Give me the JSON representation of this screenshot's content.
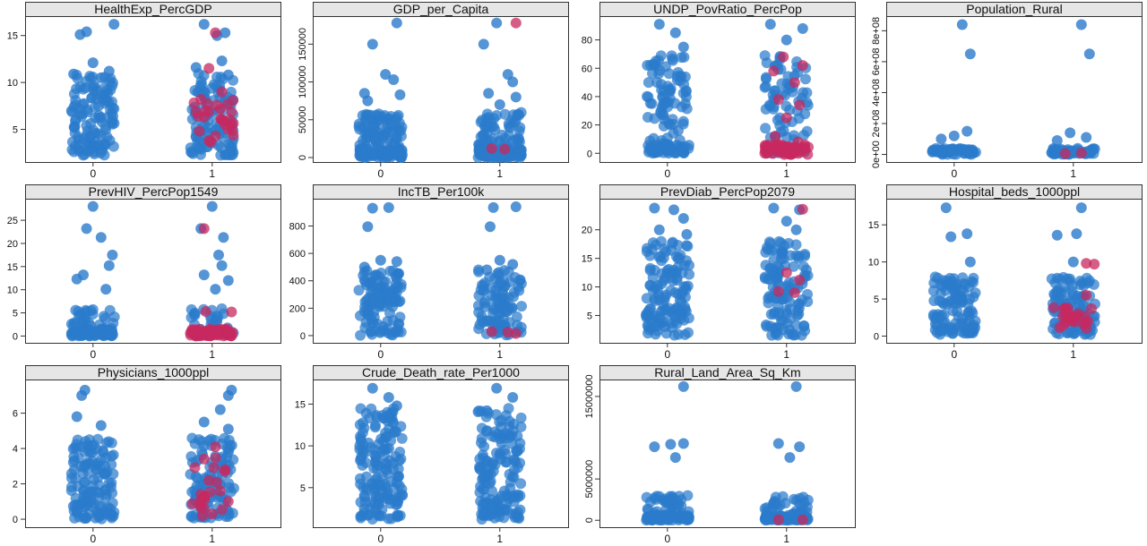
{
  "colors": {
    "blue": "#2b7bcc",
    "red": "#c7285f",
    "strip_bg": "#e6e6e6",
    "frame": "#333333"
  },
  "chart_data": [
    {
      "type": "scatter",
      "title": "HealthExp_PercGDP",
      "categories": [
        "0",
        "1"
      ],
      "ylim": [
        2,
        16.5
      ],
      "yticks": [
        {
          "v": 5,
          "t": "5"
        },
        {
          "v": 10,
          "t": "10"
        },
        {
          "v": 15,
          "t": "15"
        }
      ],
      "points": [
        [
          0.13,
          16.2
        ],
        [
          -0.08,
          15.1
        ],
        [
          -0.04,
          15.4
        ],
        [
          0.0,
          12.1
        ],
        [
          0.1,
          11.2
        ],
        [
          -0.12,
          10.9
        ],
        [
          0.05,
          10.5
        ],
        [
          0.95,
          16.2
        ],
        [
          1.08,
          15.3
        ],
        [
          1.03,
          15.0
        ],
        [
          1.06,
          12.3
        ],
        [
          0.9,
          11.6
        ],
        [
          1.1,
          10.8
        ]
      ],
      "red_points": [
        [
          1.02,
          15.3
        ],
        [
          0.98,
          11.5
        ],
        [
          1.06,
          9.0
        ],
        [
          0.93,
          8.2
        ],
        [
          1.05,
          7.2
        ],
        [
          0.95,
          6.3
        ],
        [
          1.08,
          5.5
        ],
        [
          0.92,
          4.8
        ],
        [
          1.02,
          4.3
        ],
        [
          0.98,
          3.8
        ],
        [
          1.1,
          5.0
        ],
        [
          0.9,
          6.9
        ]
      ],
      "bulk": [
        {
          "g": 0,
          "y0": 2.2,
          "y1": 11,
          "n": 120,
          "c": "blue"
        },
        {
          "g": 1,
          "y0": 2.2,
          "y1": 11,
          "n": 110,
          "c": "blue"
        },
        {
          "g": 1,
          "y0": 3.5,
          "y1": 9,
          "n": 18,
          "c": "red"
        }
      ]
    },
    {
      "type": "scatter",
      "title": "GDP_per_Capita",
      "categories": [
        "0",
        "1"
      ],
      "ylim": [
        0,
        180000
      ],
      "yticks": [
        {
          "v": 0,
          "t": "0"
        },
        {
          "v": 50000,
          "t": "50000"
        },
        {
          "v": 100000,
          "t": "100000"
        },
        {
          "v": 150000,
          "t": "150000"
        }
      ],
      "points": [
        [
          0.1,
          178000
        ],
        [
          -0.05,
          150000
        ],
        [
          0.03,
          110000
        ],
        [
          0.08,
          103000
        ],
        [
          -0.1,
          85000
        ],
        [
          0.12,
          83000
        ],
        [
          -0.08,
          75000
        ],
        [
          0.98,
          178000
        ],
        [
          0.9,
          150000
        ],
        [
          1.05,
          110000
        ],
        [
          1.08,
          100000
        ],
        [
          0.93,
          85000
        ],
        [
          1.1,
          80000
        ],
        [
          1.0,
          70000
        ]
      ],
      "red_points": [
        [
          1.1,
          178000
        ],
        [
          0.95,
          12000
        ],
        [
          1.03,
          11000
        ]
      ],
      "bulk": [
        {
          "g": 0,
          "y0": 0,
          "y1": 60000,
          "n": 100,
          "c": "blue"
        },
        {
          "g": 0,
          "y0": 0,
          "y1": 12000,
          "n": 70,
          "c": "blue"
        },
        {
          "g": 1,
          "y0": 0,
          "y1": 60000,
          "n": 95,
          "c": "blue"
        },
        {
          "g": 1,
          "y0": 0,
          "y1": 12000,
          "n": 65,
          "c": "blue"
        }
      ]
    },
    {
      "type": "scatter",
      "title": "UNDP_PovRatio_PercPop",
      "categories": [
        "0",
        "1"
      ],
      "ylim": [
        -3,
        93
      ],
      "yticks": [
        {
          "v": 0,
          "t": "0"
        },
        {
          "v": 20,
          "t": "20"
        },
        {
          "v": 40,
          "t": "40"
        },
        {
          "v": 60,
          "t": "60"
        },
        {
          "v": 80,
          "t": "80"
        }
      ],
      "points": [
        [
          -0.05,
          91
        ],
        [
          0.05,
          85
        ],
        [
          0.1,
          75
        ],
        [
          0.9,
          91
        ],
        [
          1.1,
          88
        ],
        [
          1.0,
          80
        ]
      ],
      "red_points": [
        [
          0.98,
          68
        ],
        [
          1.1,
          62
        ],
        [
          0.92,
          58
        ],
        [
          1.05,
          50
        ],
        [
          0.95,
          38
        ],
        [
          1.08,
          34
        ],
        [
          1.0,
          25
        ],
        [
          0.93,
          12
        ],
        [
          1.07,
          8
        ]
      ],
      "bulk": [
        {
          "g": 0,
          "y0": 0,
          "y1": 70,
          "n": 90,
          "c": "blue"
        },
        {
          "g": 0,
          "y0": 0,
          "y1": 6,
          "n": 40,
          "c": "blue"
        },
        {
          "g": 1,
          "y0": 0,
          "y1": 70,
          "n": 80,
          "c": "blue"
        },
        {
          "g": 1,
          "y0": -1,
          "y1": 6,
          "n": 60,
          "c": "red"
        }
      ]
    },
    {
      "type": "scatter",
      "title": "Population_Rural",
      "categories": [
        "0",
        "1"
      ],
      "ylim": [
        -20000000.0,
        860000000.0
      ],
      "yticks": [
        {
          "v": 0,
          "t": "0e+00"
        },
        {
          "v": 200000000.0,
          "t": "2e+08"
        },
        {
          "v": 400000000.0,
          "t": "4e+08"
        },
        {
          "v": 600000000.0,
          "t": "6e+08"
        },
        {
          "v": 800000000.0,
          "t": "8e+08"
        }
      ],
      "points": [
        [
          0.05,
          840000000.0
        ],
        [
          0.1,
          650000000.0
        ],
        [
          0.08,
          150000000.0
        ],
        [
          0.0,
          120000000.0
        ],
        [
          -0.08,
          100000000.0
        ],
        [
          1.05,
          840000000.0
        ],
        [
          1.1,
          650000000.0
        ],
        [
          0.98,
          140000000.0
        ],
        [
          1.08,
          110000000.0
        ],
        [
          0.9,
          90000000.0
        ]
      ],
      "red_points": [
        [
          0.95,
          5000000.0
        ],
        [
          1.05,
          8000000.0
        ]
      ],
      "bulk": [
        {
          "g": 0,
          "y0": 0,
          "y1": 40000000.0,
          "n": 60,
          "c": "blue"
        },
        {
          "g": 1,
          "y0": 0,
          "y1": 40000000.0,
          "n": 55,
          "c": "blue"
        }
      ]
    },
    {
      "type": "scatter",
      "title": "PrevHIV_PercPop1549",
      "categories": [
        "0",
        "1"
      ],
      "ylim": [
        -0.5,
        28.5
      ],
      "yticks": [
        {
          "v": 0,
          "t": "0"
        },
        {
          "v": 5,
          "t": "5"
        },
        {
          "v": 10,
          "t": "10"
        },
        {
          "v": 15,
          "t": "15"
        },
        {
          "v": 20,
          "t": "20"
        },
        {
          "v": 25,
          "t": "25"
        }
      ],
      "points": [
        [
          0.0,
          28
        ],
        [
          -0.04,
          23.2
        ],
        [
          0.05,
          21.3
        ],
        [
          0.12,
          17.5
        ],
        [
          0.1,
          15.2
        ],
        [
          -0.06,
          13.2
        ],
        [
          -0.1,
          12.3
        ],
        [
          0.08,
          10.1
        ],
        [
          1.0,
          28
        ],
        [
          0.93,
          23.2
        ],
        [
          1.07,
          21.3
        ],
        [
          1.04,
          17.5
        ],
        [
          1.06,
          15.2
        ],
        [
          0.95,
          13.2
        ],
        [
          1.1,
          12.0
        ],
        [
          1.02,
          10.1
        ]
      ],
      "red_points": [
        [
          0.95,
          23.2
        ],
        [
          0.96,
          5.3
        ],
        [
          1.12,
          5.2
        ]
      ],
      "bulk": [
        {
          "g": 0,
          "y0": 0,
          "y1": 6,
          "n": 40,
          "c": "blue"
        },
        {
          "g": 0,
          "y0": 0,
          "y1": 1.5,
          "n": 70,
          "c": "blue"
        },
        {
          "g": 1,
          "y0": 0,
          "y1": 6,
          "n": 30,
          "c": "blue"
        },
        {
          "g": 1,
          "y0": 0,
          "y1": 1.5,
          "n": 80,
          "c": "red"
        }
      ]
    },
    {
      "type": "scatter",
      "title": "IncTB_Per100k",
      "categories": [
        "0",
        "1"
      ],
      "ylim": [
        -20,
        960
      ],
      "yticks": [
        {
          "v": 0,
          "t": "0"
        },
        {
          "v": 200,
          "t": "200"
        },
        {
          "v": 400,
          "t": "400"
        },
        {
          "v": 600,
          "t": "600"
        },
        {
          "v": 800,
          "t": "800"
        }
      ],
      "points": [
        [
          -0.05,
          930
        ],
        [
          0.05,
          935
        ],
        [
          -0.08,
          795
        ],
        [
          0.0,
          550
        ],
        [
          0.1,
          540
        ],
        [
          -0.1,
          500
        ],
        [
          0.96,
          935
        ],
        [
          1.1,
          940
        ],
        [
          0.94,
          795
        ],
        [
          1.0,
          550
        ],
        [
          1.08,
          520
        ],
        [
          0.92,
          480
        ]
      ],
      "red_points": [
        [
          0.95,
          30
        ],
        [
          1.05,
          25
        ],
        [
          1.1,
          15
        ]
      ],
      "bulk": [
        {
          "g": 0,
          "y0": 0,
          "y1": 480,
          "n": 110,
          "c": "blue"
        },
        {
          "g": 1,
          "y0": 0,
          "y1": 480,
          "n": 100,
          "c": "blue"
        }
      ]
    },
    {
      "type": "scatter",
      "title": "PrevDiab_PercPop2079",
      "categories": [
        "0",
        "1"
      ],
      "ylim": [
        1,
        24.5
      ],
      "yticks": [
        {
          "v": 5,
          "t": "5"
        },
        {
          "v": 10,
          "t": "10"
        },
        {
          "v": 15,
          "t": "15"
        },
        {
          "v": 20,
          "t": "20"
        }
      ],
      "points": [
        [
          -0.08,
          23.8
        ],
        [
          0.04,
          23.5
        ],
        [
          0.1,
          22.0
        ],
        [
          -0.05,
          20.0
        ],
        [
          0.12,
          19.2
        ],
        [
          0.92,
          23.8
        ],
        [
          1.08,
          23.5
        ],
        [
          1.0,
          21.5
        ],
        [
          1.06,
          20.0
        ]
      ],
      "red_points": [
        [
          1.1,
          23.6
        ],
        [
          1.0,
          12.5
        ],
        [
          1.08,
          11.2
        ],
        [
          0.95,
          9.2
        ],
        [
          1.05,
          9.0
        ]
      ],
      "bulk": [
        {
          "g": 0,
          "y0": 1.5,
          "y1": 18,
          "n": 130,
          "c": "blue"
        },
        {
          "g": 1,
          "y0": 1.5,
          "y1": 18,
          "n": 120,
          "c": "blue"
        }
      ]
    },
    {
      "type": "scatter",
      "title": "Hospital_beds_1000ppl",
      "categories": [
        "0",
        "1"
      ],
      "ylim": [
        -0.3,
        17.8
      ],
      "yticks": [
        {
          "v": 0,
          "t": "0"
        },
        {
          "v": 5,
          "t": "5"
        },
        {
          "v": 10,
          "t": "10"
        },
        {
          "v": 15,
          "t": "15"
        }
      ],
      "points": [
        [
          -0.05,
          17.3
        ],
        [
          0.08,
          13.8
        ],
        [
          -0.02,
          13.4
        ],
        [
          0.1,
          10.0
        ],
        [
          1.05,
          17.3
        ],
        [
          0.9,
          13.6
        ],
        [
          1.02,
          13.8
        ],
        [
          1.0,
          10.0
        ]
      ],
      "red_points": [
        [
          1.08,
          9.8
        ],
        [
          1.13,
          9.7
        ],
        [
          1.08,
          5.5
        ],
        [
          0.95,
          3.8
        ],
        [
          1.03,
          3.0
        ],
        [
          0.97,
          2.5
        ],
        [
          1.09,
          2.0
        ]
      ],
      "bulk": [
        {
          "g": 0,
          "y0": 0.2,
          "y1": 8,
          "n": 110,
          "c": "blue"
        },
        {
          "g": 1,
          "y0": 0.2,
          "y1": 8,
          "n": 100,
          "c": "blue"
        },
        {
          "g": 1,
          "y0": 1,
          "y1": 4,
          "n": 20,
          "c": "red"
        }
      ]
    },
    {
      "type": "scatter",
      "title": "Physicians_1000ppl",
      "categories": [
        "0",
        "1"
      ],
      "ylim": [
        -0.2,
        7.6
      ],
      "yticks": [
        {
          "v": 0,
          "t": "0"
        },
        {
          "v": 2,
          "t": "2"
        },
        {
          "v": 4,
          "t": "4"
        },
        {
          "v": 6,
          "t": "6"
        }
      ],
      "points": [
        [
          -0.05,
          7.3
        ],
        [
          -0.07,
          7.0
        ],
        [
          -0.1,
          5.8
        ],
        [
          0.05,
          5.3
        ],
        [
          1.12,
          7.3
        ],
        [
          1.1,
          7.0
        ],
        [
          1.05,
          6.2
        ],
        [
          0.95,
          5.5
        ],
        [
          1.1,
          5.1
        ]
      ],
      "red_points": [
        [
          1.02,
          4.1
        ],
        [
          0.95,
          3.4
        ],
        [
          1.08,
          2.8
        ],
        [
          0.98,
          2.2
        ],
        [
          1.05,
          1.6
        ],
        [
          0.93,
          1.4
        ],
        [
          1.1,
          1.0
        ],
        [
          1.0,
          0.3
        ],
        [
          0.94,
          0.2
        ]
      ],
      "bulk": [
        {
          "g": 0,
          "y0": 0,
          "y1": 4.6,
          "n": 130,
          "c": "blue"
        },
        {
          "g": 1,
          "y0": 0,
          "y1": 4.6,
          "n": 110,
          "c": "blue"
        },
        {
          "g": 1,
          "y0": 0.5,
          "y1": 3.5,
          "n": 15,
          "c": "red"
        }
      ]
    },
    {
      "type": "scatter",
      "title": "Crude_Death_rate_Per1000",
      "categories": [
        "0",
        "1"
      ],
      "ylim": [
        0.8,
        17.3
      ],
      "yticks": [
        {
          "v": 5,
          "t": "5"
        },
        {
          "v": 10,
          "t": "10"
        },
        {
          "v": 15,
          "t": "15"
        }
      ],
      "points": [
        [
          -0.05,
          16.9
        ],
        [
          0.05,
          15.8
        ],
        [
          0.1,
          14.8
        ],
        [
          0.98,
          16.9
        ],
        [
          1.08,
          15.8
        ],
        [
          0.92,
          14.2
        ]
      ],
      "red_points": [],
      "bulk": [
        {
          "g": 0,
          "y0": 1.2,
          "y1": 14.5,
          "n": 160,
          "c": "blue"
        },
        {
          "g": 1,
          "y0": 1.2,
          "y1": 14.5,
          "n": 150,
          "c": "blue"
        }
      ]
    },
    {
      "type": "scatter",
      "title": "Rural_Land_Area_Sq_Km",
      "categories": [
        "0",
        "1"
      ],
      "ylim": [
        -300000,
        16400000
      ],
      "yticks": [
        {
          "v": 0,
          "t": "0"
        },
        {
          "v": 5000000,
          "t": "5000000"
        },
        {
          "v": 15000000,
          "t": "15000000"
        }
      ],
      "points": [
        [
          0.1,
          16200000
        ],
        [
          -0.08,
          8900000
        ],
        [
          0.02,
          9200000
        ],
        [
          0.1,
          9300000
        ],
        [
          0.05,
          7600000
        ],
        [
          1.06,
          16200000
        ],
        [
          0.95,
          9300000
        ],
        [
          1.08,
          8900000
        ],
        [
          1.02,
          7600000
        ]
      ],
      "red_points": [
        [
          0.95,
          60000
        ],
        [
          1.1,
          50000
        ]
      ],
      "bulk": [
        {
          "g": 0,
          "y0": 0,
          "y1": 3000000,
          "n": 50,
          "c": "blue"
        },
        {
          "g": 0,
          "y0": 0,
          "y1": 600000,
          "n": 70,
          "c": "blue"
        },
        {
          "g": 1,
          "y0": 0,
          "y1": 3000000,
          "n": 45,
          "c": "blue"
        },
        {
          "g": 1,
          "y0": 0,
          "y1": 600000,
          "n": 65,
          "c": "blue"
        }
      ]
    }
  ]
}
